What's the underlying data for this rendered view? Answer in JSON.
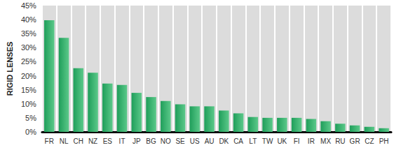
{
  "chart_data": {
    "type": "bar",
    "y_label": "RIGID LENSES",
    "categories": [
      "FR",
      "NL",
      "CH",
      "NZ",
      "ES",
      "IT",
      "JP",
      "BG",
      "NO",
      "SE",
      "US",
      "AU",
      "DK",
      "CA",
      "LT",
      "TW",
      "UK",
      "FI",
      "IR",
      "MX",
      "RU",
      "GR",
      "CZ",
      "PH"
    ],
    "values": [
      39.8,
      33.5,
      22.7,
      21.1,
      17.2,
      16.7,
      13.9,
      12.4,
      11.0,
      9.8,
      9.1,
      9.1,
      7.6,
      6.6,
      5.3,
      5.0,
      5.0,
      5.0,
      4.6,
      3.8,
      2.9,
      2.3,
      1.8,
      1.3
    ],
    "color": "#1f9e5a",
    "ylim": [
      0,
      45
    ],
    "yticks": [
      {
        "value": 0,
        "label": "0%"
      },
      {
        "value": 5,
        "label": "5%"
      },
      {
        "value": 10,
        "label": "10%"
      },
      {
        "value": 15,
        "label": "15%"
      },
      {
        "value": 20,
        "label": "20%"
      },
      {
        "value": 25,
        "label": "25%"
      },
      {
        "value": 30,
        "label": "30%"
      },
      {
        "value": 35,
        "label": "35%"
      },
      {
        "value": 40,
        "label": "40%"
      },
      {
        "value": 45,
        "label": "45%"
      }
    ],
    "grid": false
  }
}
